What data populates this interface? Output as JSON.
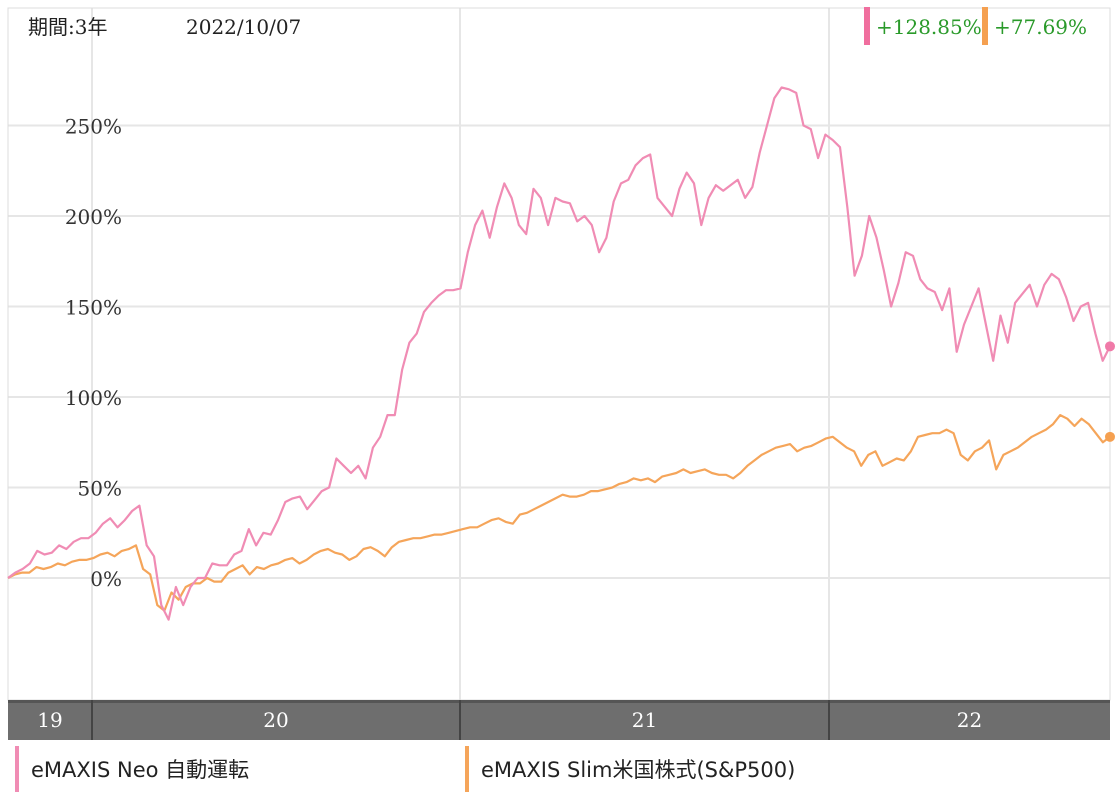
{
  "header": {
    "period_label": "期間:3年",
    "date_label": "2022/10/07"
  },
  "chart_data": {
    "type": "line",
    "x_ticks": [
      "19",
      "20",
      "21",
      "22"
    ],
    "y_ticks": [
      "0%",
      "50%",
      "100%",
      "150%",
      "200%",
      "250%"
    ],
    "ylim": [
      -70,
      310
    ],
    "grid": true,
    "legend_position": "bottom",
    "series": [
      {
        "name": "eMAXIS Neo 自動運転",
        "color": "#f08cb4",
        "marker_color": "#f07aa8",
        "final_return_label": "+128.85%",
        "values": [
          0,
          3,
          5,
          8,
          15,
          13,
          14,
          18,
          16,
          20,
          22,
          22,
          25,
          30,
          33,
          28,
          32,
          37,
          40,
          18,
          12,
          -15,
          -23,
          -5,
          -15,
          -5,
          0,
          0,
          8,
          7,
          7,
          13,
          15,
          27,
          18,
          25,
          24,
          32,
          42,
          44,
          45,
          38,
          43,
          48,
          50,
          66,
          62,
          58,
          62,
          55,
          72,
          78,
          90,
          90,
          115,
          130,
          135,
          147,
          152,
          156,
          159,
          159,
          160,
          180,
          195,
          203,
          188,
          205,
          218,
          210,
          195,
          190,
          215,
          210,
          195,
          210,
          208,
          207,
          197,
          200,
          195,
          180,
          188,
          208,
          218,
          220,
          228,
          232,
          234,
          210,
          205,
          200,
          215,
          224,
          218,
          195,
          210,
          217,
          214,
          217,
          220,
          210,
          216,
          235,
          250,
          265,
          271,
          270,
          268,
          250,
          248,
          232,
          245,
          242,
          238,
          205,
          167,
          178,
          200,
          188,
          170,
          150,
          163,
          180,
          178,
          165,
          160,
          158,
          148,
          160,
          125,
          140,
          150,
          160,
          140,
          120,
          145,
          130,
          152,
          157,
          162,
          150,
          162,
          168,
          165,
          155,
          142,
          150,
          152,
          135,
          120,
          128
        ]
      },
      {
        "name": "eMAXIS Slim米国株式(S&P500)",
        "color": "#f5a55a",
        "marker_color": "#f5a050",
        "final_return_label": "+77.69%",
        "values": [
          0,
          2,
          3,
          3,
          6,
          5,
          6,
          8,
          7,
          9,
          10,
          10,
          11,
          13,
          14,
          12,
          15,
          16,
          18,
          5,
          2,
          -15,
          -18,
          -8,
          -12,
          -5,
          -3,
          -3,
          0,
          -2,
          -2,
          3,
          5,
          7,
          2,
          6,
          5,
          7,
          8,
          10,
          11,
          8,
          10,
          13,
          15,
          16,
          14,
          13,
          10,
          12,
          16,
          17,
          15,
          12,
          17,
          20,
          21,
          22,
          22,
          23,
          24,
          24,
          25,
          26,
          27,
          28,
          28,
          30,
          32,
          33,
          31,
          30,
          35,
          36,
          38,
          40,
          42,
          44,
          46,
          45,
          45,
          46,
          48,
          48,
          49,
          50,
          52,
          53,
          55,
          54,
          55,
          53,
          56,
          57,
          58,
          60,
          58,
          59,
          60,
          58,
          57,
          57,
          55,
          58,
          62,
          65,
          68,
          70,
          72,
          73,
          74,
          70,
          72,
          73,
          75,
          77,
          78,
          75,
          72,
          70,
          62,
          68,
          70,
          62,
          64,
          66,
          65,
          70,
          78,
          79,
          80,
          80,
          82,
          80,
          68,
          65,
          70,
          72,
          76,
          60,
          68,
          70,
          72,
          75,
          78,
          80,
          82,
          85,
          90,
          88,
          84,
          88,
          85,
          80,
          75,
          78
        ]
      }
    ]
  }
}
